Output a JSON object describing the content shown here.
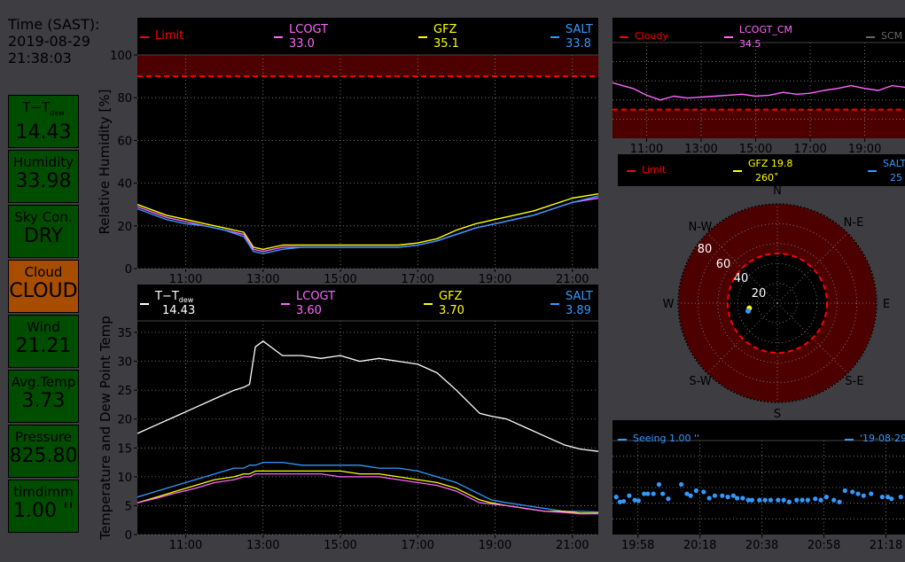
{
  "time": {
    "label": "Time (SAST):",
    "date": "2019-08-29",
    "clock": "21:38:03"
  },
  "tiles": [
    {
      "label": "T−T",
      "sub": "dew",
      "value": "14.43",
      "bg": "#004d00"
    },
    {
      "label": "Humidity",
      "value": "33.98",
      "bg": "#004d00"
    },
    {
      "label": "Sky Con.",
      "value": "DRY",
      "bg": "#004d00"
    },
    {
      "label": "Cloud",
      "value": "CLOUD",
      "bg": "#a64d00"
    },
    {
      "label": "Wind",
      "value": "21.21",
      "bg": "#004d00"
    },
    {
      "label": "Avg.Temp",
      "value": "3.73",
      "bg": "#004d00"
    },
    {
      "label": "Pressure",
      "value": "825.80",
      "bg": "#004d00"
    },
    {
      "label": "timdimm",
      "value": "1.00 ''",
      "bg": "#004d00"
    }
  ],
  "colors": {
    "lcogt": "#ff66ff",
    "gfz": "#ffff00",
    "salt": "#3399ff",
    "limit": "#ff0000",
    "temp": "#ffffff",
    "limit_fill": "#4d0000"
  },
  "chart_data": [
    {
      "type": "line",
      "ylabel": "Relative Humidity [%]",
      "ylim": [
        0,
        100
      ],
      "yticks": [
        "0",
        "20",
        "40",
        "60",
        "80",
        "100"
      ],
      "xlim": [
        9.75,
        21.67
      ],
      "xticks": [
        "11:00",
        "13:00",
        "15:00",
        "17:00",
        "19:00",
        "21:00"
      ],
      "legend": [
        {
          "label": "Limit",
          "value": "",
          "color": "#ff0000"
        },
        {
          "label": "LCOGT",
          "value": "33.0",
          "color": "#ff66ff"
        },
        {
          "label": "GFZ",
          "value": "35.1",
          "color": "#ffff00"
        },
        {
          "label": "SALT",
          "value": "33.8",
          "color": "#3399ff"
        }
      ],
      "limit": 90,
      "x": [
        9.75,
        10.5,
        11.0,
        11.5,
        12.0,
        12.5,
        12.75,
        13.0,
        13.5,
        14.0,
        14.5,
        15.0,
        15.5,
        16.0,
        16.5,
        17.0,
        17.5,
        18.0,
        18.5,
        19.0,
        19.5,
        20.0,
        20.5,
        21.0,
        21.67
      ],
      "series": [
        {
          "name": "GFZ",
          "color": "#ffff00",
          "values": [
            30,
            25,
            23,
            21,
            19,
            17,
            10,
            9,
            11,
            11,
            11,
            11,
            11,
            11,
            11,
            12,
            14,
            18,
            21,
            23,
            25,
            27,
            30,
            33,
            35
          ]
        },
        {
          "name": "LCOGT",
          "color": "#ff66ff",
          "values": [
            29,
            24,
            22,
            20,
            18,
            16,
            9,
            8,
            10,
            10,
            10,
            10,
            10,
            10,
            10,
            11,
            13,
            16,
            19,
            21,
            23,
            25,
            28,
            31,
            33
          ]
        },
        {
          "name": "SALT",
          "color": "#3399ff",
          "values": [
            28,
            23,
            21,
            20,
            18,
            15,
            8,
            7,
            9,
            10,
            10,
            10,
            10,
            10,
            10,
            11,
            13,
            16,
            19,
            21,
            23,
            25,
            28,
            31,
            34
          ]
        }
      ]
    },
    {
      "type": "line",
      "ylabel": "Temperature and Dew Point Temp",
      "ylim": [
        0,
        37
      ],
      "yticks": [
        "0",
        "5",
        "10",
        "15",
        "20",
        "25",
        "30",
        "35"
      ],
      "xlim": [
        9.75,
        21.67
      ],
      "xticks": [
        "11:00",
        "13:00",
        "15:00",
        "17:00",
        "19:00",
        "21:00"
      ],
      "legend": [
        {
          "label": "T−T",
          "sub": "dew",
          "value": "14.43",
          "color": "#ffffff"
        },
        {
          "label": "LCOGT",
          "value": "3.60",
          "color": "#ff66ff"
        },
        {
          "label": "GFZ",
          "value": "3.70",
          "color": "#ffff00"
        },
        {
          "label": "SALT",
          "value": "3.89",
          "color": "#3399ff"
        }
      ],
      "x": [
        9.75,
        10.25,
        10.75,
        11.25,
        11.75,
        12.25,
        12.5,
        12.65,
        12.8,
        13.0,
        13.5,
        14.0,
        14.5,
        15.0,
        15.5,
        16.0,
        16.5,
        17.0,
        17.5,
        18.0,
        18.3,
        18.6,
        18.9,
        19.3,
        19.8,
        20.3,
        20.8,
        21.2,
        21.67
      ],
      "series": [
        {
          "name": "T−T dew",
          "color": "#ffffff",
          "values": [
            17.5,
            19,
            20.5,
            22,
            23.5,
            25,
            25.5,
            26,
            32.5,
            33.5,
            31,
            31,
            30.5,
            31,
            30,
            30.5,
            30,
            29.5,
            28,
            25,
            23,
            21,
            20.5,
            20,
            18.5,
            17,
            15.5,
            14.8,
            14.4
          ]
        },
        {
          "name": "SALT",
          "color": "#3399ff",
          "values": [
            6.5,
            7.5,
            8.5,
            9.5,
            10.5,
            11.5,
            11.5,
            12,
            12,
            12.5,
            12.5,
            12,
            12,
            12,
            12,
            11.5,
            11.5,
            11,
            10,
            9,
            8,
            7,
            6,
            5.5,
            5,
            4.5,
            4,
            4,
            3.9
          ]
        },
        {
          "name": "GFZ",
          "color": "#ffff00",
          "values": [
            5.5,
            6.5,
            7.5,
            8.5,
            9.5,
            10,
            10.5,
            10.5,
            11,
            11,
            11,
            11,
            11,
            11,
            10.5,
            10.5,
            10,
            9.5,
            9,
            8,
            7,
            6,
            5.5,
            5,
            4.5,
            4,
            4,
            3.7,
            3.7
          ]
        },
        {
          "name": "LCOGT",
          "color": "#ff66ff",
          "values": [
            5.5,
            6.3,
            7.2,
            8,
            9,
            9.5,
            10,
            10,
            10.5,
            10.5,
            10.5,
            10.5,
            10.5,
            10,
            10,
            10,
            9.5,
            9,
            8.5,
            7.5,
            6.5,
            5.5,
            5.3,
            5,
            4.5,
            4,
            3.8,
            3.6,
            3.6
          ]
        }
      ]
    },
    {
      "type": "line",
      "ylim": [
        0,
        100
      ],
      "xlim": [
        9.75,
        20.8
      ],
      "xticks": [
        "11:00",
        "13:00",
        "15:00",
        "17:00",
        "19:00"
      ],
      "legend": [
        {
          "label": "Cloudy",
          "value": "",
          "color": "#ff0000"
        },
        {
          "label": "LCOGT_CM",
          "value": "34.5",
          "color": "#ff66ff"
        },
        {
          "label": "SCM",
          "value": "",
          "color": "#666666"
        }
      ],
      "limit": 30,
      "x": [
        9.75,
        10.5,
        11.0,
        11.5,
        12.0,
        12.5,
        13.0,
        13.5,
        14.0,
        14.5,
        15.0,
        15.5,
        16.0,
        16.5,
        17.0,
        17.5,
        18.0,
        18.5,
        19.0,
        19.5,
        20.0,
        20.8
      ],
      "series": [
        {
          "name": "LCOGT_CM",
          "color": "#ff66ff",
          "values": [
            58,
            52,
            45,
            40,
            44,
            42,
            43,
            44,
            45,
            46,
            44,
            45,
            48,
            46,
            47,
            50,
            52,
            55,
            52,
            50,
            55,
            52
          ]
        }
      ]
    },
    {
      "type": "scatter",
      "subtype": "polar",
      "legend": [
        {
          "label": "Limit",
          "value": "",
          "color": "#ff0000"
        },
        {
          "label": "GFZ 19.8",
          "value": "260˚",
          "color": "#ffff00"
        },
        {
          "label": "SALT",
          "value": "25",
          "color": "#3399ff"
        }
      ],
      "directions": [
        "N",
        "N-E",
        "E",
        "S-E",
        "S",
        "S-W",
        "W",
        "N-W"
      ],
      "rticks": [
        "20",
        "40",
        "60",
        "80"
      ],
      "rlim": [
        0,
        100
      ],
      "limit": 60,
      "points": [
        {
          "name": "GFZ",
          "r": 19.8,
          "theta": 260,
          "color": "#ffff00"
        },
        {
          "name": "SALT",
          "r": 21,
          "theta": 255,
          "color": "#3399ff"
        }
      ]
    },
    {
      "type": "scatter",
      "ylim": [
        0.5,
        2.0
      ],
      "xlim": [
        19.83,
        21.45
      ],
      "xticks": [
        "19:58",
        "20:18",
        "20:38",
        "20:58",
        "21:18"
      ],
      "legend": [
        {
          "label": "Seeing 1.00 ''",
          "value": "",
          "color": "#3399ff"
        },
        {
          "label": "'19-08-29  2",
          "value": "",
          "color": "#3399ff"
        }
      ],
      "x": [
        19.85,
        19.87,
        19.89,
        19.92,
        19.95,
        19.97,
        20.0,
        20.02,
        20.05,
        20.08,
        20.1,
        20.13,
        20.2,
        20.23,
        20.25,
        20.28,
        20.32,
        20.35,
        20.38,
        20.42,
        20.45,
        20.48,
        20.5,
        20.53,
        20.56,
        20.58,
        20.62,
        20.65,
        20.68,
        20.72,
        20.75,
        20.78,
        20.82,
        20.85,
        20.88,
        20.92,
        20.95,
        20.98,
        21.02,
        21.05,
        21.08,
        21.12,
        21.15,
        21.18,
        21.22,
        21.28,
        21.31,
        21.33,
        21.38,
        21.42,
        21.45
      ],
      "series": [
        {
          "name": "Seeing",
          "color": "#3399ff",
          "values": [
            1.1,
            1.02,
            1.03,
            1.12,
            1.05,
            1.04,
            1.15,
            1.15,
            1.15,
            1.3,
            1.15,
            1.07,
            1.3,
            1.15,
            1.12,
            1.2,
            1.18,
            1.08,
            1.12,
            1.12,
            1.1,
            1.12,
            1.08,
            1.08,
            1.05,
            1.05,
            1.05,
            1.05,
            1.05,
            1.05,
            1.05,
            1.02,
            1.05,
            1.05,
            1.05,
            1.07,
            1.05,
            1.1,
            1.05,
            1.02,
            1.2,
            1.18,
            1.15,
            1.12,
            1.15,
            1.1,
            1.1,
            1.07,
            1.1,
            1.1,
            1.08
          ]
        }
      ]
    }
  ]
}
